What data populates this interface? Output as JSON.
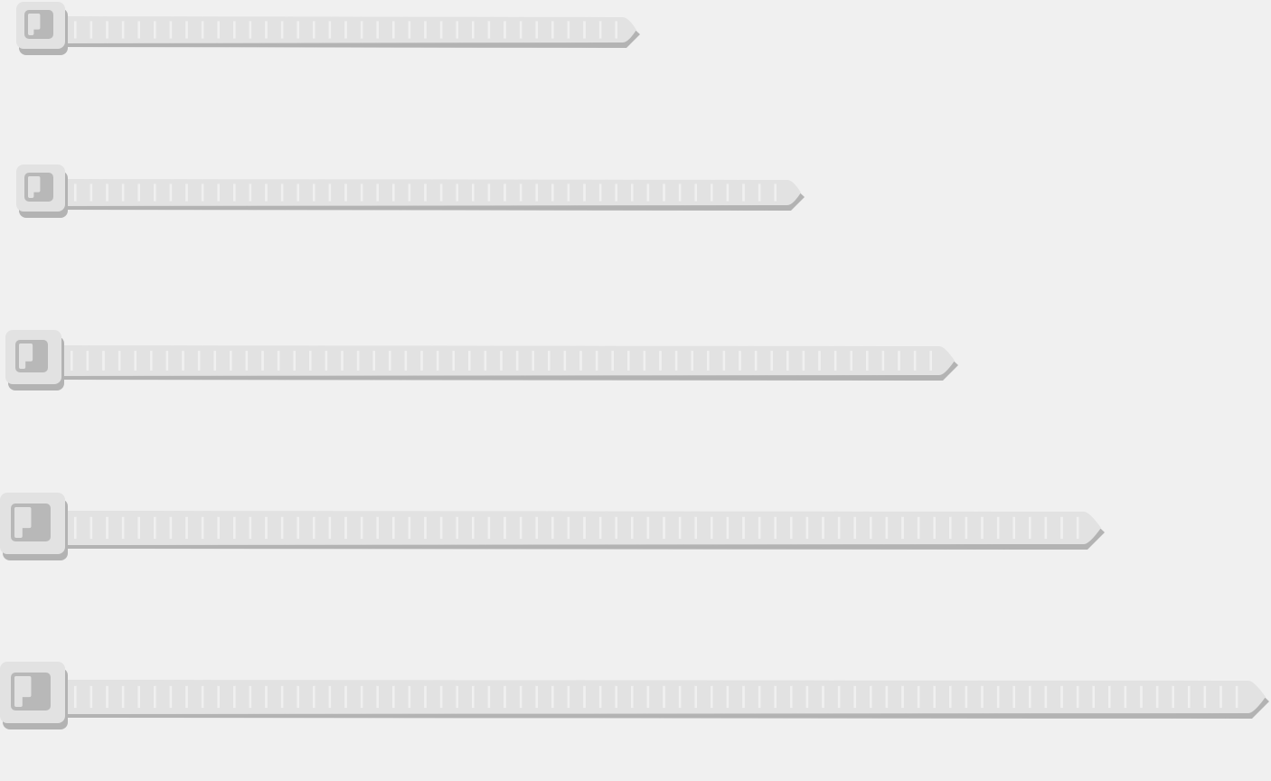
{
  "illustration": {
    "background_color": "#f0f0f0",
    "colors": {
      "strap_face": "#e2e2e2",
      "strap_shadow": "#b3b3b3",
      "rib": "#f0f0f0",
      "head_face": "#e2e2e2",
      "head_slot": "#b8b8b8",
      "head_slot_inner": "#e2e2e2"
    },
    "cable_ties": [
      {
        "name": "cable-tie-1",
        "length_ratio": 0.49
      },
      {
        "name": "cable-tie-2",
        "length_ratio": 0.62
      },
      {
        "name": "cable-tie-3",
        "length_ratio": 0.75
      },
      {
        "name": "cable-tie-4",
        "length_ratio": 0.87
      },
      {
        "name": "cable-tie-5",
        "length_ratio": 1.0
      }
    ]
  }
}
